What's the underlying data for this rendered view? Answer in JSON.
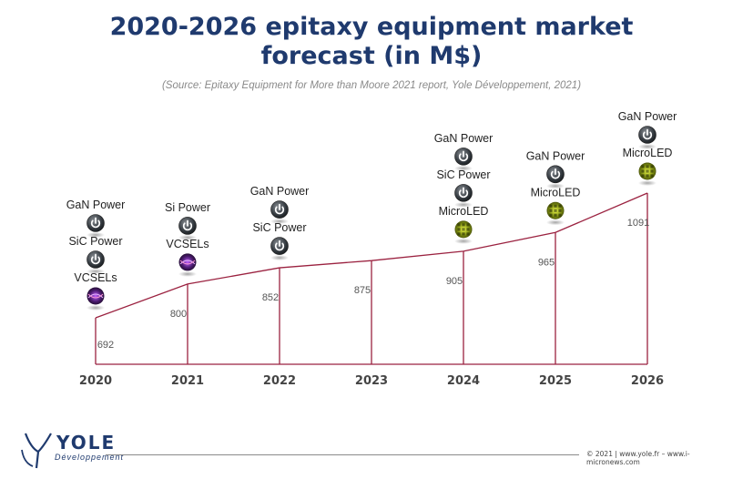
{
  "header": {
    "title_line1": "2020-2026 epitaxy equipment market",
    "title_line2": "forecast (in M$)",
    "source": "(Source: Epitaxy Equipment for More than Moore 2021 report, Yole Développement, 2021)"
  },
  "chart_data": {
    "type": "line",
    "title": "2020-2026 epitaxy equipment market forecast (in M$)",
    "x": [
      "2020",
      "2021",
      "2022",
      "2023",
      "2024",
      "2025",
      "2026"
    ],
    "values": [
      692,
      800,
      852,
      875,
      905,
      965,
      1091
    ],
    "value_labels": [
      "692",
      "800",
      "852",
      "875",
      "905",
      "965",
      "1091"
    ],
    "ylim": [
      600,
      1100
    ],
    "grid": false,
    "series_color": "#9b2240",
    "annotations": [
      {
        "year": "2020",
        "items": [
          {
            "label": "GaN Power",
            "icon": "power-icon"
          },
          {
            "label": "SiC Power",
            "icon": "power-icon"
          },
          {
            "label": "VCSELs",
            "icon": "vcsel-icon"
          }
        ]
      },
      {
        "year": "2021",
        "items": [
          {
            "label": "Si Power",
            "icon": "power-icon"
          },
          {
            "label": "VCSELs",
            "icon": "vcsel-icon"
          }
        ]
      },
      {
        "year": "2022",
        "items": [
          {
            "label": "GaN Power",
            "icon": "power-icon"
          },
          {
            "label": "SiC Power",
            "icon": "power-icon"
          }
        ]
      },
      {
        "year": "2023",
        "items": []
      },
      {
        "year": "2024",
        "items": [
          {
            "label": "GaN Power",
            "icon": "power-icon"
          },
          {
            "label": "SiC Power",
            "icon": "power-icon"
          },
          {
            "label": "MicroLED",
            "icon": "microled-icon"
          }
        ]
      },
      {
        "year": "2025",
        "items": [
          {
            "label": "GaN Power",
            "icon": "power-icon"
          },
          {
            "label": "MicroLED",
            "icon": "microled-icon"
          }
        ]
      },
      {
        "year": "2026",
        "items": [
          {
            "label": "GaN Power",
            "icon": "power-icon"
          },
          {
            "label": "MicroLED",
            "icon": "microled-icon"
          }
        ]
      }
    ]
  },
  "footer": {
    "logo_word": "YOLE",
    "logo_sub": "Développement",
    "copyright": "© 2021 | www.yole.fr – www.i-micronews.com"
  }
}
